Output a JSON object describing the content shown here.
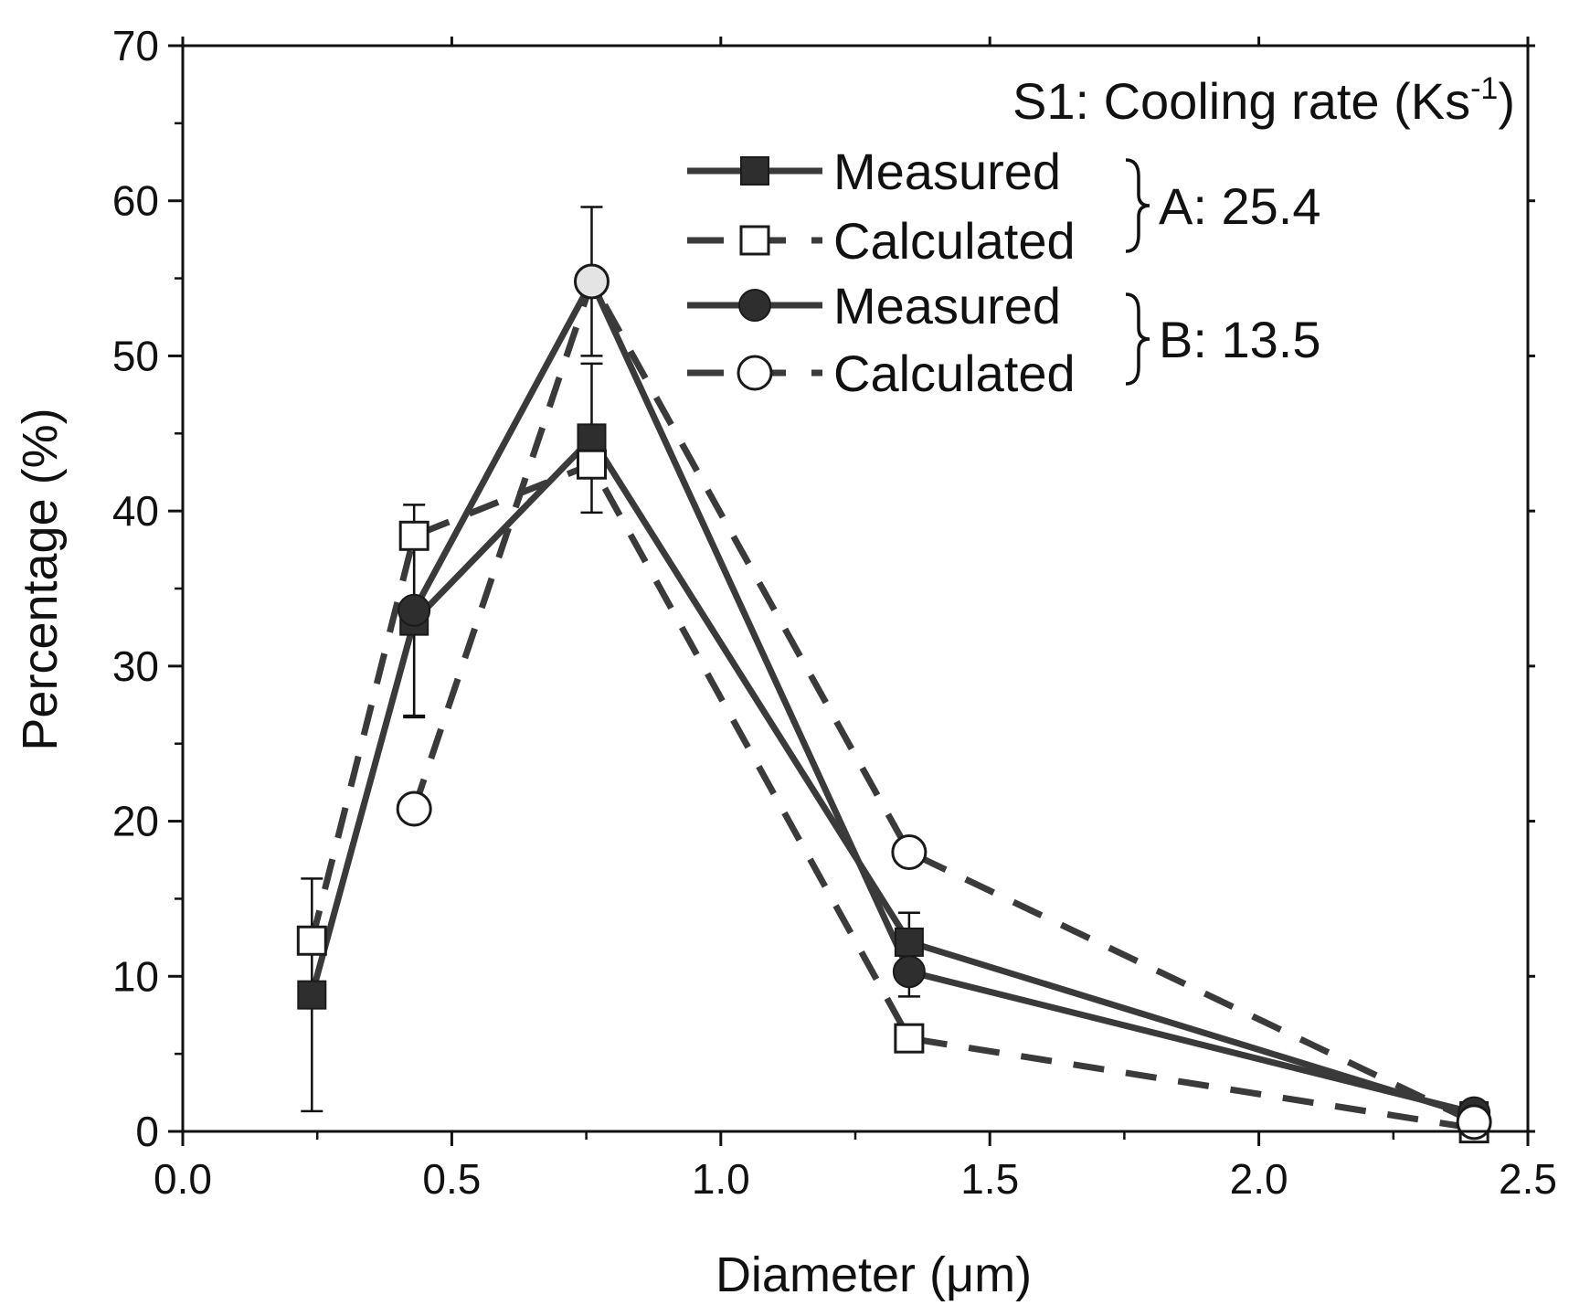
{
  "chart_data": {
    "type": "line",
    "title": "S1: Cooling rate (Ks",
    "title_superscript": "-1",
    "title_suffix": ")",
    "xlabel": "Diameter (μm)",
    "ylabel": "Percentage (%)",
    "xlim": [
      0.0,
      2.5
    ],
    "ylim": [
      0,
      70
    ],
    "xticks": [
      0.0,
      0.5,
      1.0,
      1.5,
      2.0,
      2.5
    ],
    "xtick_labels": [
      "0.0",
      "0.5",
      "1.0",
      "1.5",
      "2.0",
      "2.5"
    ],
    "yticks": [
      0,
      10,
      20,
      30,
      40,
      50,
      60,
      70
    ],
    "ytick_labels": [
      "0",
      "10",
      "20",
      "30",
      "40",
      "50",
      "60",
      "70"
    ],
    "x": [
      0.24,
      0.43,
      0.76,
      1.35,
      2.4
    ],
    "series": [
      {
        "name": "Measured",
        "group": "A",
        "marker": "square-filled",
        "line": "solid",
        "values": [
          8.8,
          32.9,
          44.7,
          12.2,
          1.0
        ],
        "error": [
          7.5,
          6.2,
          4.8,
          1.9,
          0.3
        ]
      },
      {
        "name": "Calculated",
        "group": "A",
        "marker": "square-open",
        "line": "dashed",
        "values": [
          12.3,
          38.4,
          43.0,
          6.0,
          0.2
        ]
      },
      {
        "name": "Measured",
        "group": "B",
        "marker": "circle-filled",
        "line": "solid",
        "values": null,
        "points": [
          [
            0.43,
            33.6
          ],
          [
            0.76,
            54.8
          ],
          [
            1.35,
            10.3
          ],
          [
            2.4,
            1.2
          ]
        ],
        "error": [
          6.8,
          4.8,
          1.6,
          0.3
        ]
      },
      {
        "name": "Calculated",
        "group": "B",
        "marker": "circle-open",
        "line": "dashed",
        "points": [
          [
            0.43,
            20.8
          ],
          [
            0.76,
            54.8
          ],
          [
            1.35,
            18.0
          ],
          [
            2.4,
            0.6
          ]
        ]
      }
    ],
    "legend_groups": [
      {
        "label": "A: 25.4",
        "members": [
          0,
          1
        ]
      },
      {
        "label": "B: 13.5",
        "members": [
          2,
          3
        ]
      }
    ],
    "legend_position": "top-right",
    "grid": false
  },
  "colors": {
    "line": "#3a3a3a",
    "axis": "#111111",
    "highlight_circle": "#e4e4e4"
  }
}
